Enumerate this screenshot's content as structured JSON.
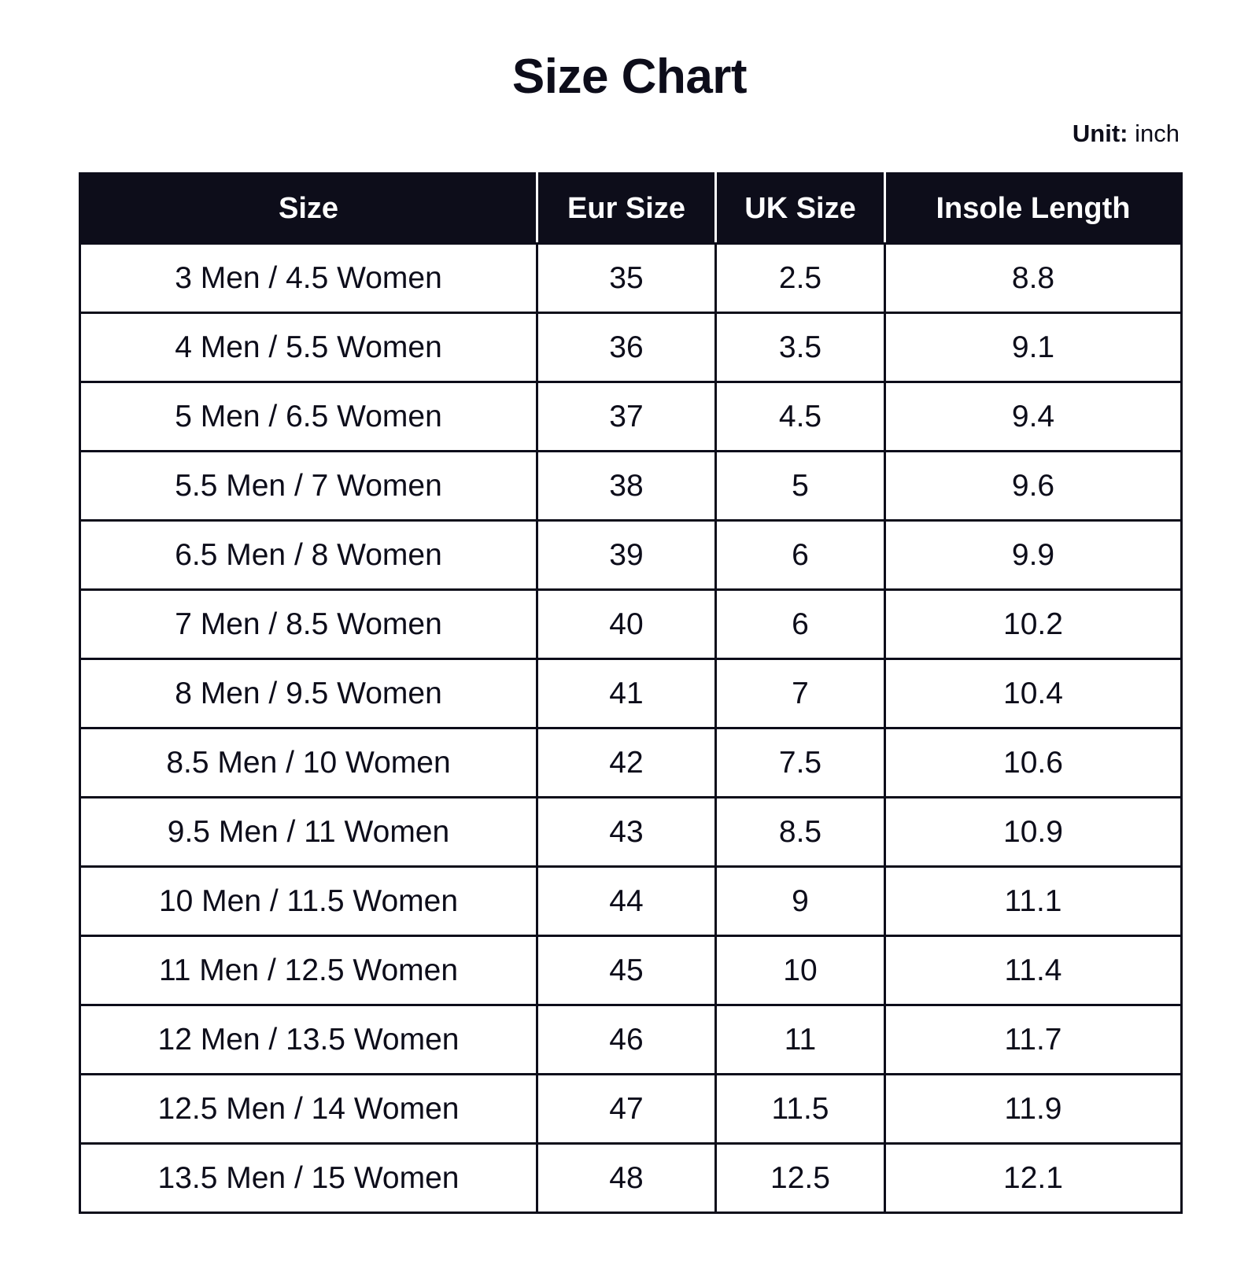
{
  "title": "Size Chart",
  "unit": {
    "label": "Unit:",
    "value": "inch"
  },
  "columns": [
    "Size",
    "Eur Size",
    "UK Size",
    "Insole Length"
  ],
  "rows": [
    [
      "3 Men / 4.5 Women",
      "35",
      "2.5",
      "8.8"
    ],
    [
      "4 Men / 5.5 Women",
      "36",
      "3.5",
      "9.1"
    ],
    [
      "5 Men / 6.5 Women",
      "37",
      "4.5",
      "9.4"
    ],
    [
      "5.5 Men / 7 Women",
      "38",
      "5",
      "9.6"
    ],
    [
      "6.5 Men / 8 Women",
      "39",
      "6",
      "9.9"
    ],
    [
      "7 Men / 8.5 Women",
      "40",
      "6",
      "10.2"
    ],
    [
      "8 Men / 9.5 Women",
      "41",
      "7",
      "10.4"
    ],
    [
      "8.5 Men / 10 Women",
      "42",
      "7.5",
      "10.6"
    ],
    [
      "9.5 Men / 11 Women",
      "43",
      "8.5",
      "10.9"
    ],
    [
      "10 Men / 11.5 Women",
      "44",
      "9",
      "11.1"
    ],
    [
      "11 Men / 12.5 Women",
      "45",
      "10",
      "11.4"
    ],
    [
      "12 Men / 13.5 Women",
      "46",
      "11",
      "11.7"
    ],
    [
      "12.5 Men / 14 Women",
      "47",
      "11.5",
      "11.9"
    ],
    [
      "13.5 Men / 15 Women",
      "48",
      "12.5",
      "12.1"
    ]
  ],
  "colors": {
    "header_bg": "#0d0d1a",
    "header_text": "#ffffff",
    "border": "#0d0d1a"
  }
}
